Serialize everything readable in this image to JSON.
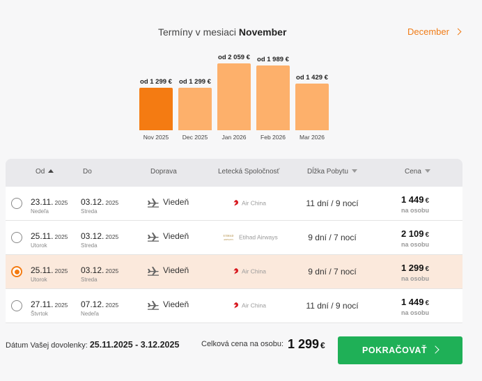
{
  "header": {
    "title_prefix": "Termíny v mesiaci",
    "title_month": "November",
    "next_month": "December"
  },
  "bars": [
    {
      "price": "od 1 299 €",
      "label": "Nov 2025",
      "value": 1299,
      "selected": true
    },
    {
      "price": "od 1 299 €",
      "label": "Dec 2025",
      "value": 1299,
      "selected": false
    },
    {
      "price": "od 2 059 €",
      "label": "Jan 2026",
      "value": 2059,
      "selected": false
    },
    {
      "price": "od 1 989 €",
      "label": "Feb 2026",
      "value": 1989,
      "selected": false
    },
    {
      "price": "od 1 429 €",
      "label": "Mar 2026",
      "value": 1429,
      "selected": false
    }
  ],
  "table": {
    "headers": {
      "from": "Od",
      "to": "Do",
      "transport": "Doprava",
      "airline": "Letecká Spoločnosť",
      "stay": "Dĺžka Pobytu",
      "price": "Cena"
    },
    "rows": [
      {
        "from": "23.11.",
        "from_year": "2025",
        "from_day": "Nedeľa",
        "to": "03.12.",
        "to_year": "2025",
        "to_day": "Streda",
        "transport": "Viedeň",
        "airline": "Air China",
        "airline_logo": "air-china",
        "stay": "11 dní / 9 nocí",
        "price": "1 449",
        "currency": "€",
        "per": "na osobu",
        "selected": false
      },
      {
        "from": "25.11.",
        "from_year": "2025",
        "from_day": "Utorok",
        "to": "03.12.",
        "to_year": "2025",
        "to_day": "Streda",
        "transport": "Viedeň",
        "airline": "Etihad Airways",
        "airline_logo": "etihad",
        "stay": "9 dní / 7 nocí",
        "price": "2 109",
        "currency": "€",
        "per": "na osobu",
        "selected": false
      },
      {
        "from": "25.11.",
        "from_year": "2025",
        "from_day": "Utorok",
        "to": "03.12.",
        "to_year": "2025",
        "to_day": "Streda",
        "transport": "Viedeň",
        "airline": "Air China",
        "airline_logo": "air-china",
        "stay": "9 dní / 7 nocí",
        "price": "1 299",
        "currency": "€",
        "per": "na osobu",
        "selected": true
      },
      {
        "from": "27.11.",
        "from_year": "2025",
        "from_day": "Štvrtok",
        "to": "07.12.",
        "to_year": "2025",
        "to_day": "Nedeľa",
        "transport": "Viedeň",
        "airline": "Air China",
        "airline_logo": "air-china",
        "stay": "11 dní / 9 nocí",
        "price": "1 449",
        "currency": "€",
        "per": "na osobu",
        "selected": false
      }
    ]
  },
  "footer": {
    "date_label": "Dátum Vašej dovolenky:",
    "date_value": "25.11.2025 - 3.12.2025",
    "price_label": "Celková cena na osobu:",
    "price_value": "1 299",
    "currency": "€",
    "button": "POKRAČOVAŤ"
  },
  "colors": {
    "accent": "#f47b12",
    "bar": "#fdb06b",
    "selected_row": "#fbe9dc",
    "button": "#1fb057"
  }
}
